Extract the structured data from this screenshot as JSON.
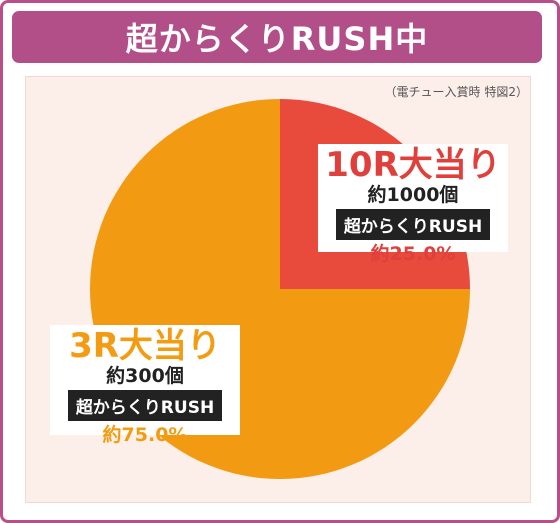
{
  "title": "超からくりRUSH中",
  "note": "（電チュー入賞時 特図2）",
  "colors": {
    "frame": "#b94f8a",
    "title_bg": "#b24e88",
    "panel_bg": "#fcefe9",
    "slice_10r": "#e84a3c",
    "slice_3r": "#f29a12"
  },
  "chart_data": {
    "type": "pie",
    "slices": [
      {
        "label": "10R大当り",
        "count": "約1000個",
        "mode": "超からくりRUSH",
        "percent_label": "約25.0%",
        "value": 25.0,
        "color": "#e84a3c"
      },
      {
        "label": "3R大当り",
        "count": "約300個",
        "mode": "超からくりRUSH",
        "percent_label": "約75.0%",
        "value": 75.0,
        "color": "#f29a12"
      }
    ]
  }
}
